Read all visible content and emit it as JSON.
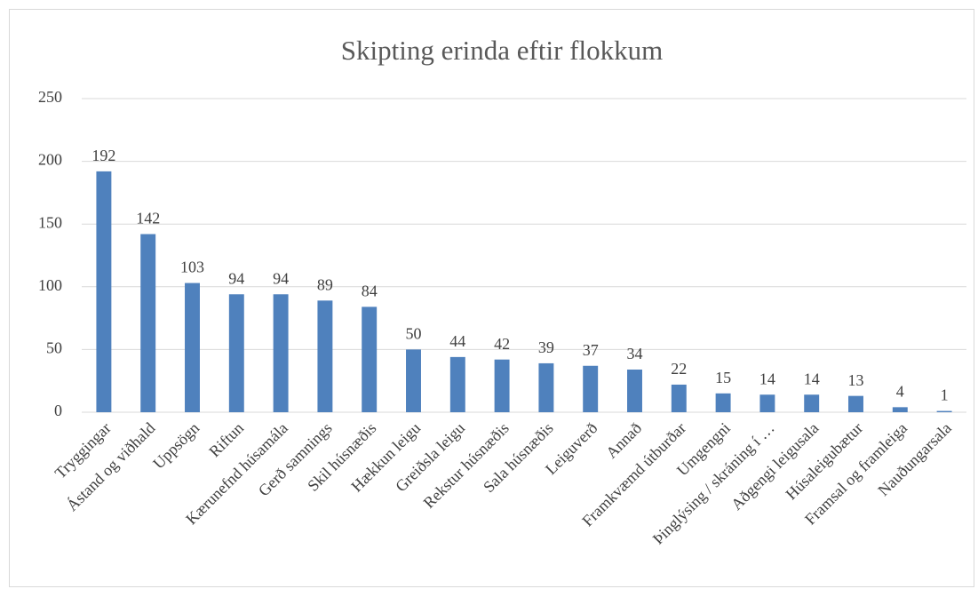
{
  "chart_data": {
    "type": "bar",
    "title": "Skipting erinda eftir flokkum",
    "categories": [
      "Tryggingar",
      "Ástand og viðhald",
      "Uppsögn",
      "Riftun",
      "Kærunefnd húsamála",
      "Gerð samnings",
      "Skil húsnæðis",
      "Hækkun leigu",
      "Greiðsla leigu",
      "Rekstur húsnæðis",
      "Sala húsnæðis",
      "Leiguverð",
      "Annað",
      "Framkvæmd útburðar",
      "Umgengni",
      "Þinglýsing / skráning í …",
      "Aðgengi leigusala",
      "Húsaleigubætur",
      "Framsal og framleiga",
      "Nauðungarsala"
    ],
    "values": [
      192,
      142,
      103,
      94,
      94,
      89,
      84,
      50,
      44,
      42,
      39,
      37,
      34,
      22,
      15,
      14,
      14,
      13,
      4,
      1
    ],
    "color": "#4f81bd",
    "ylim": [
      0,
      250
    ],
    "yticks": [
      0,
      50,
      100,
      150,
      200,
      250
    ],
    "grid": true
  }
}
